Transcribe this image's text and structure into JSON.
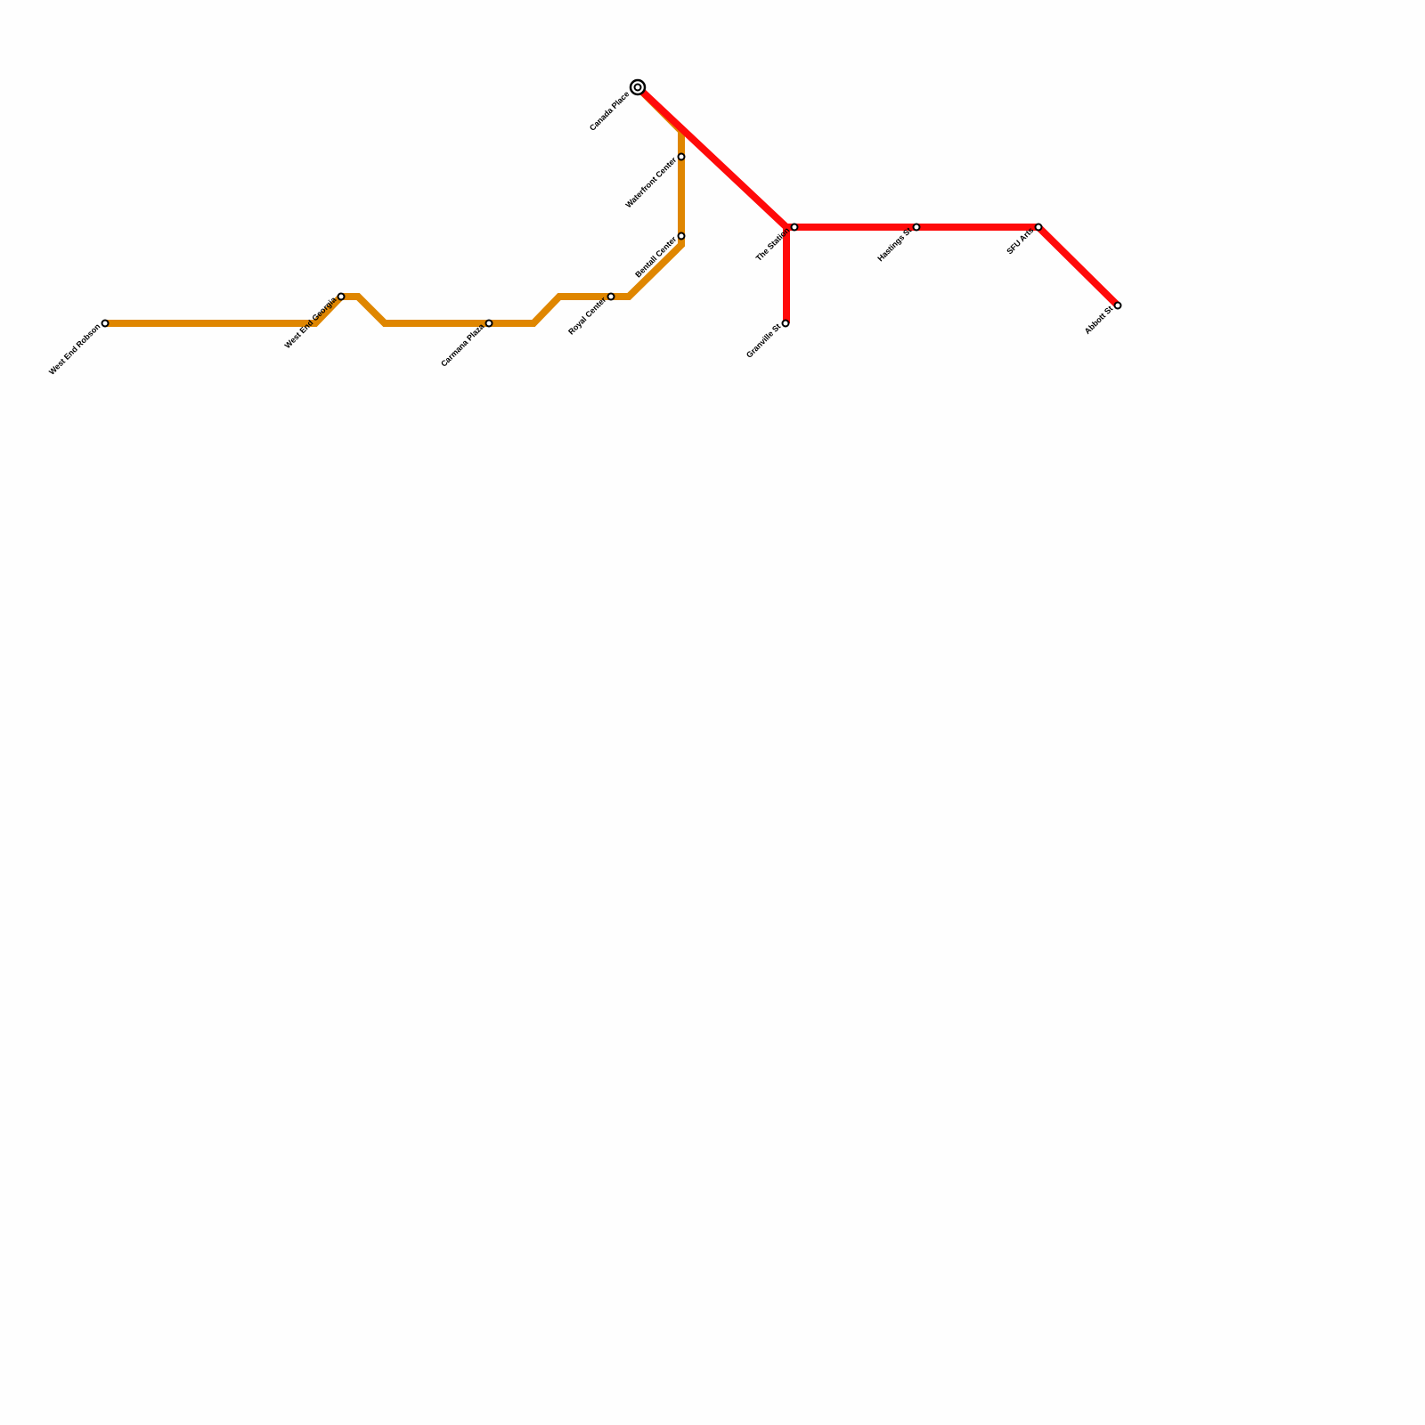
{
  "lines": [
    {
      "name": "orange-line",
      "color": "#df8600",
      "stations": [
        "West End Robson",
        "West End Georgia",
        "Carmana Plaza",
        "Royal Center",
        "Bentall Center",
        "Waterfront Center",
        "Canada Place"
      ]
    },
    {
      "name": "red-line",
      "color": "#ff0a0a",
      "stations": [
        "Canada Place",
        "The Station",
        "Hastings St",
        "SFU Arts",
        "Abbott St",
        "Granville St"
      ]
    }
  ],
  "interchanges": [
    "Canada Place"
  ]
}
